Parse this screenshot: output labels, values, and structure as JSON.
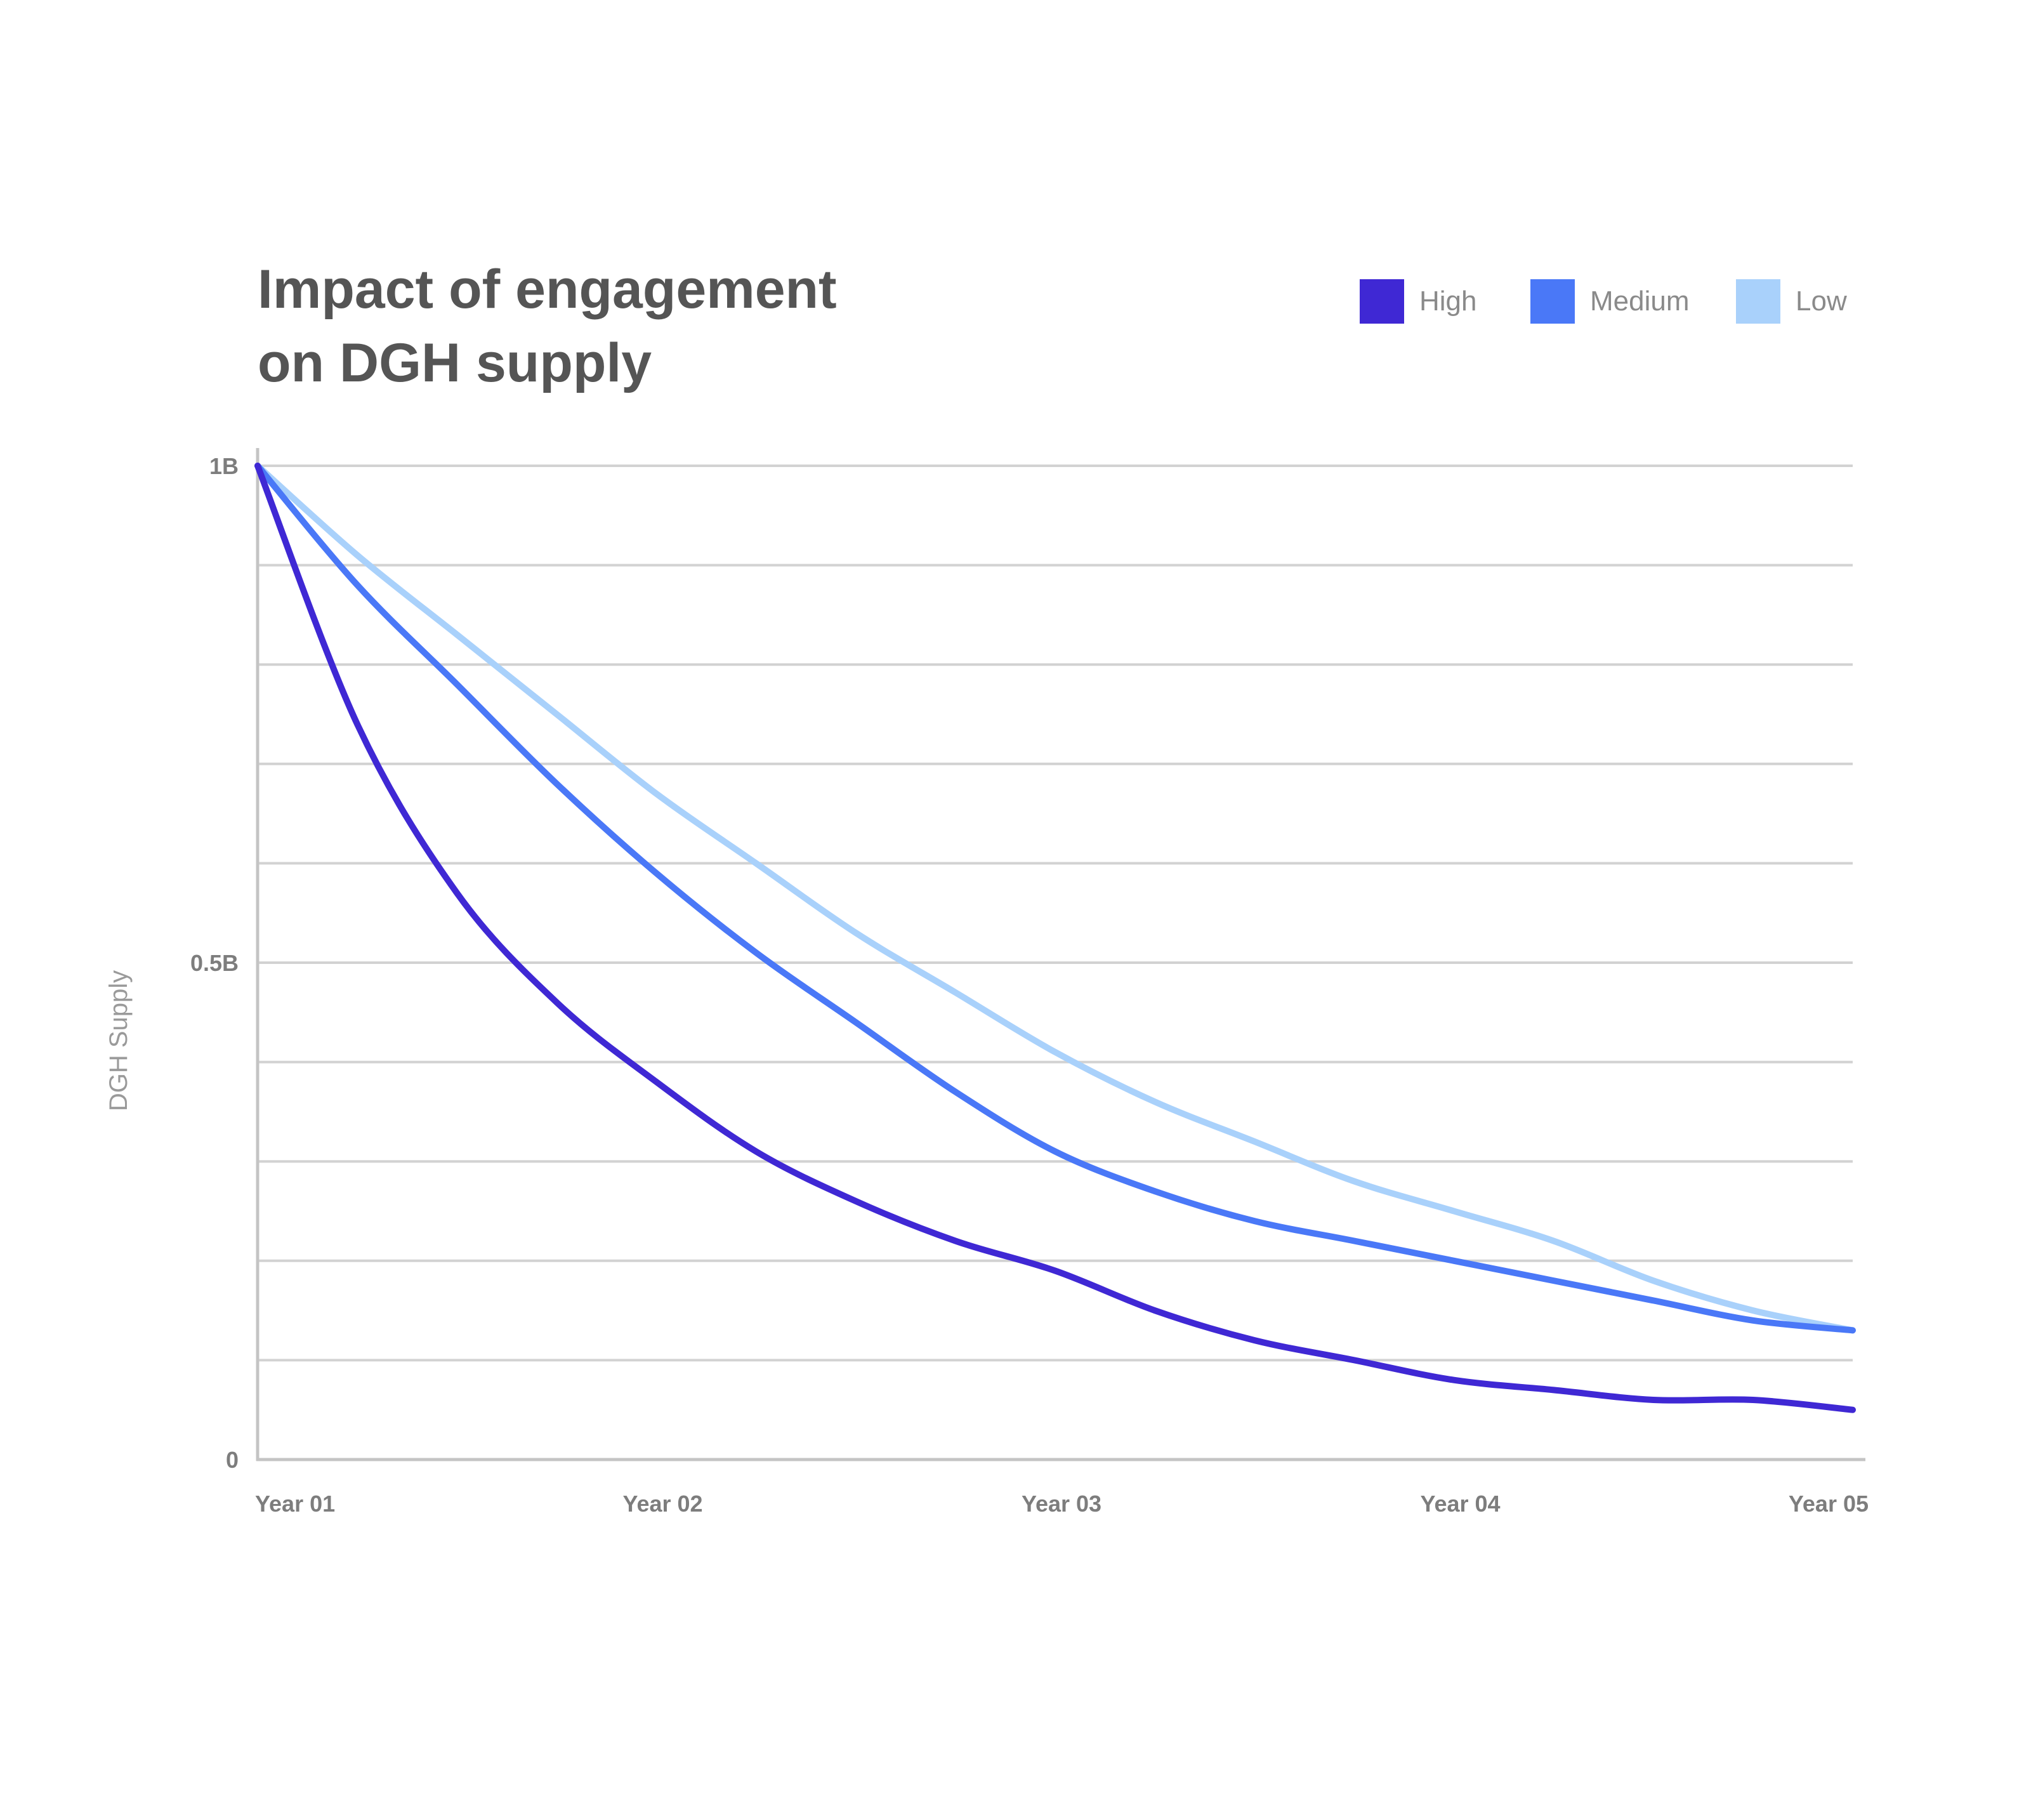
{
  "title_lines": [
    "Impact of engagement",
    "on DGH supply"
  ],
  "chart_data": {
    "type": "line",
    "title": "Impact of engagement on DGH supply",
    "xlabel": "",
    "ylabel": "DGH Supply",
    "categories": [
      "Year 01",
      "Year 02",
      "Year 03",
      "Year 04",
      "Year 05"
    ],
    "y_ticks": [
      {
        "value": 0,
        "label": "0"
      },
      {
        "value": 0.5,
        "label": "0.5B"
      },
      {
        "value": 1,
        "label": "1B"
      }
    ],
    "ylim": [
      0,
      1
    ],
    "y_unit": "billions",
    "grid": true,
    "legend_position": "top-right",
    "x": [
      1.0,
      1.25,
      1.5,
      1.75,
      2.0,
      2.25,
      2.5,
      2.75,
      3.0,
      3.25,
      3.5,
      3.75,
      4.0,
      4.25,
      4.5,
      4.75,
      5.0
    ],
    "series": [
      {
        "name": "High",
        "color": "#3f28d4",
        "values": [
          1.0,
          0.74,
          0.57,
          0.46,
          0.38,
          0.31,
          0.26,
          0.22,
          0.19,
          0.15,
          0.12,
          0.1,
          0.08,
          0.07,
          0.06,
          0.06,
          0.05
        ]
      },
      {
        "name": "Medium",
        "color": "#4a78f7",
        "values": [
          1.0,
          0.88,
          0.78,
          0.68,
          0.59,
          0.51,
          0.44,
          0.37,
          0.31,
          0.27,
          0.24,
          0.22,
          0.2,
          0.18,
          0.16,
          0.14,
          0.13
        ]
      },
      {
        "name": "Low",
        "color": "#a9d1fb",
        "values": [
          1.0,
          0.91,
          0.83,
          0.75,
          0.67,
          0.6,
          0.53,
          0.47,
          0.41,
          0.36,
          0.32,
          0.28,
          0.25,
          0.22,
          0.18,
          0.15,
          0.13
        ]
      }
    ]
  }
}
